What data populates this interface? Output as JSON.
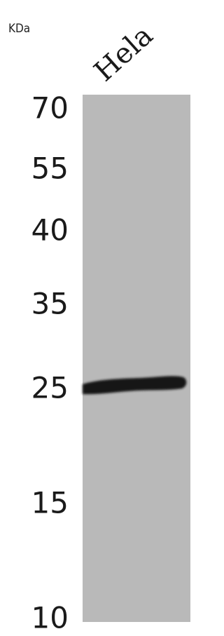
{
  "unit_label": "KDa",
  "lanes": [
    {
      "label": "Hela"
    }
  ],
  "markers": [
    70,
    55,
    40,
    35,
    25,
    15,
    10
  ]
}
